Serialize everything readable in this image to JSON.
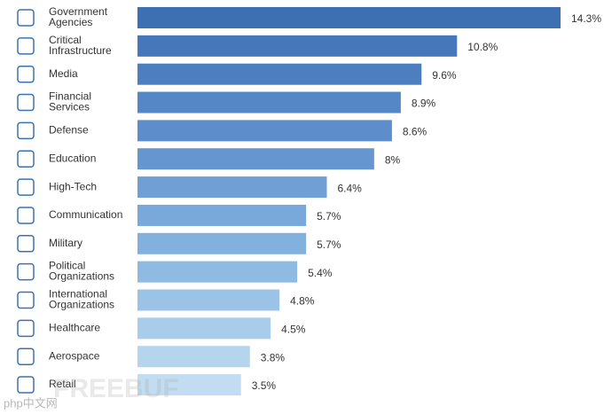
{
  "chart_data": {
    "type": "hbar",
    "categories": [
      "Government Agencies",
      "Critical Infrastructure",
      "Media",
      "Financial Services",
      "Defense",
      "Education",
      "High-Tech",
      "Communication",
      "Military",
      "Political Organizations",
      "International Organizations",
      "Healthcare",
      "Aerospace",
      "Retail"
    ],
    "values": [
      14.3,
      10.8,
      9.6,
      8.9,
      8.6,
      8,
      6.4,
      5.7,
      5.7,
      5.4,
      4.8,
      4.5,
      3.8,
      3.5
    ],
    "value_labels": [
      "14.3%",
      "10.8%",
      "9.6%",
      "8.9%",
      "8.6%",
      "8%",
      "6.4%",
      "5.7%",
      "5.7%",
      "5.4%",
      "4.8%",
      "4.5%",
      "3.8%",
      "3.5%"
    ],
    "colors": [
      "#3d70b3",
      "#4577ba",
      "#4d7fc0",
      "#5586c6",
      "#5d8ecb",
      "#6696d0",
      "#6f9fd5",
      "#79a8da",
      "#83b1de",
      "#8fbae2",
      "#9bc3e6",
      "#a8cceb",
      "#b5d5ee",
      "#c2ddf2"
    ],
    "xlim": [
      0,
      14.3
    ],
    "watermarks": [
      "php中文网",
      "FREEBUF"
    ]
  }
}
